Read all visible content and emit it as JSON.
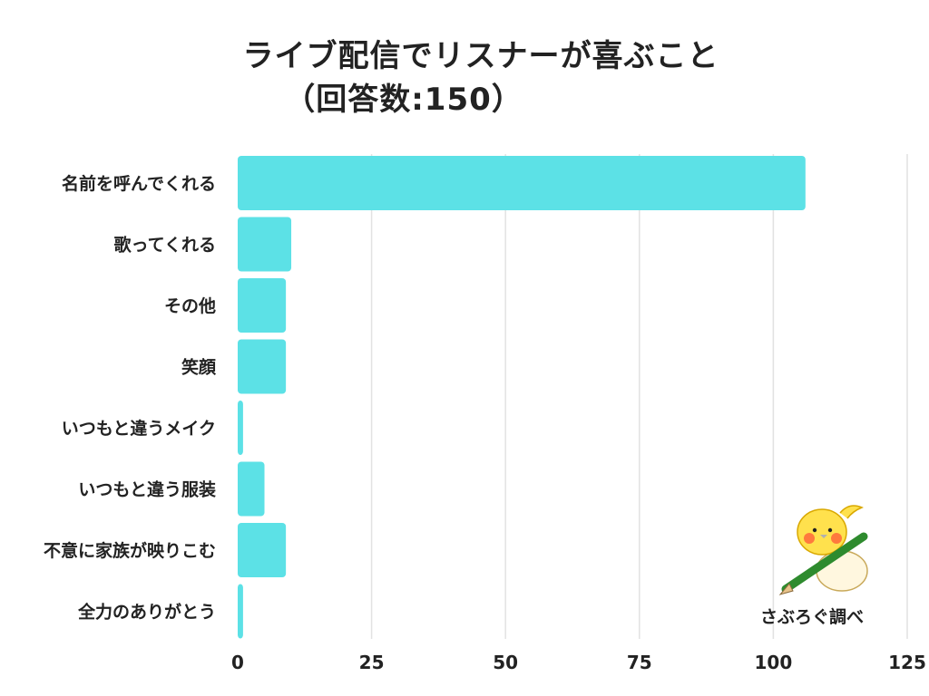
{
  "title": {
    "line1": "ライブ配信でリスナーが喜ぶこと",
    "line2": "（回答数:150）"
  },
  "credit": "さぶろぐ調べ",
  "colors": {
    "bar": "#5ce1e6",
    "grid": "#e2e2e2",
    "text": "#222222"
  },
  "chart_data": {
    "type": "bar",
    "orientation": "horizontal",
    "categories": [
      "名前を呼んでくれる",
      "歌ってくれる",
      "その他",
      "笑顔",
      "いつもと違うメイク",
      "いつもと違う服装",
      "不意に家族が映りこむ",
      "全力のありがとう"
    ],
    "values": [
      106,
      10,
      9,
      9,
      1,
      5,
      9,
      1
    ],
    "xlim": [
      0,
      125
    ],
    "xticks": [
      0,
      25,
      50,
      75,
      100,
      125
    ],
    "grid": true
  }
}
